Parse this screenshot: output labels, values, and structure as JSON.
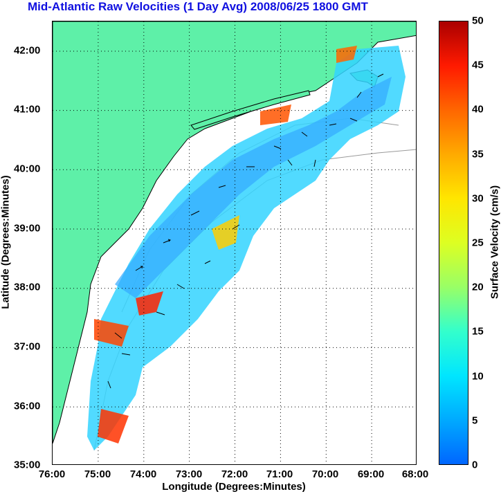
{
  "title": "Mid-Atlantic Raw Velocities (1 Day Avg) 2008/06/25 1800 GMT",
  "x_axis": {
    "label": "Longitude (Degrees:Minutes)",
    "ticks": [
      "76:00",
      "75:00",
      "74:00",
      "73:00",
      "72:00",
      "71:00",
      "70:00",
      "69:00",
      "68:00"
    ]
  },
  "y_axis": {
    "label": "Latitude (Degrees:Minutes)",
    "ticks": [
      "42:00",
      "41:00",
      "40:00",
      "39:00",
      "38:00",
      "37:00",
      "36:00",
      "35:00"
    ]
  },
  "colorbar": {
    "label": "Surface Velocity (cm/s)",
    "ticks": [
      "50",
      "45",
      "40",
      "35",
      "30",
      "25",
      "20",
      "15",
      "10",
      "5",
      "0"
    ]
  },
  "colors": {
    "land": "#5ef0a8",
    "title": "#1010e0",
    "grid": "#000000",
    "bathymetry": "#999999"
  }
}
